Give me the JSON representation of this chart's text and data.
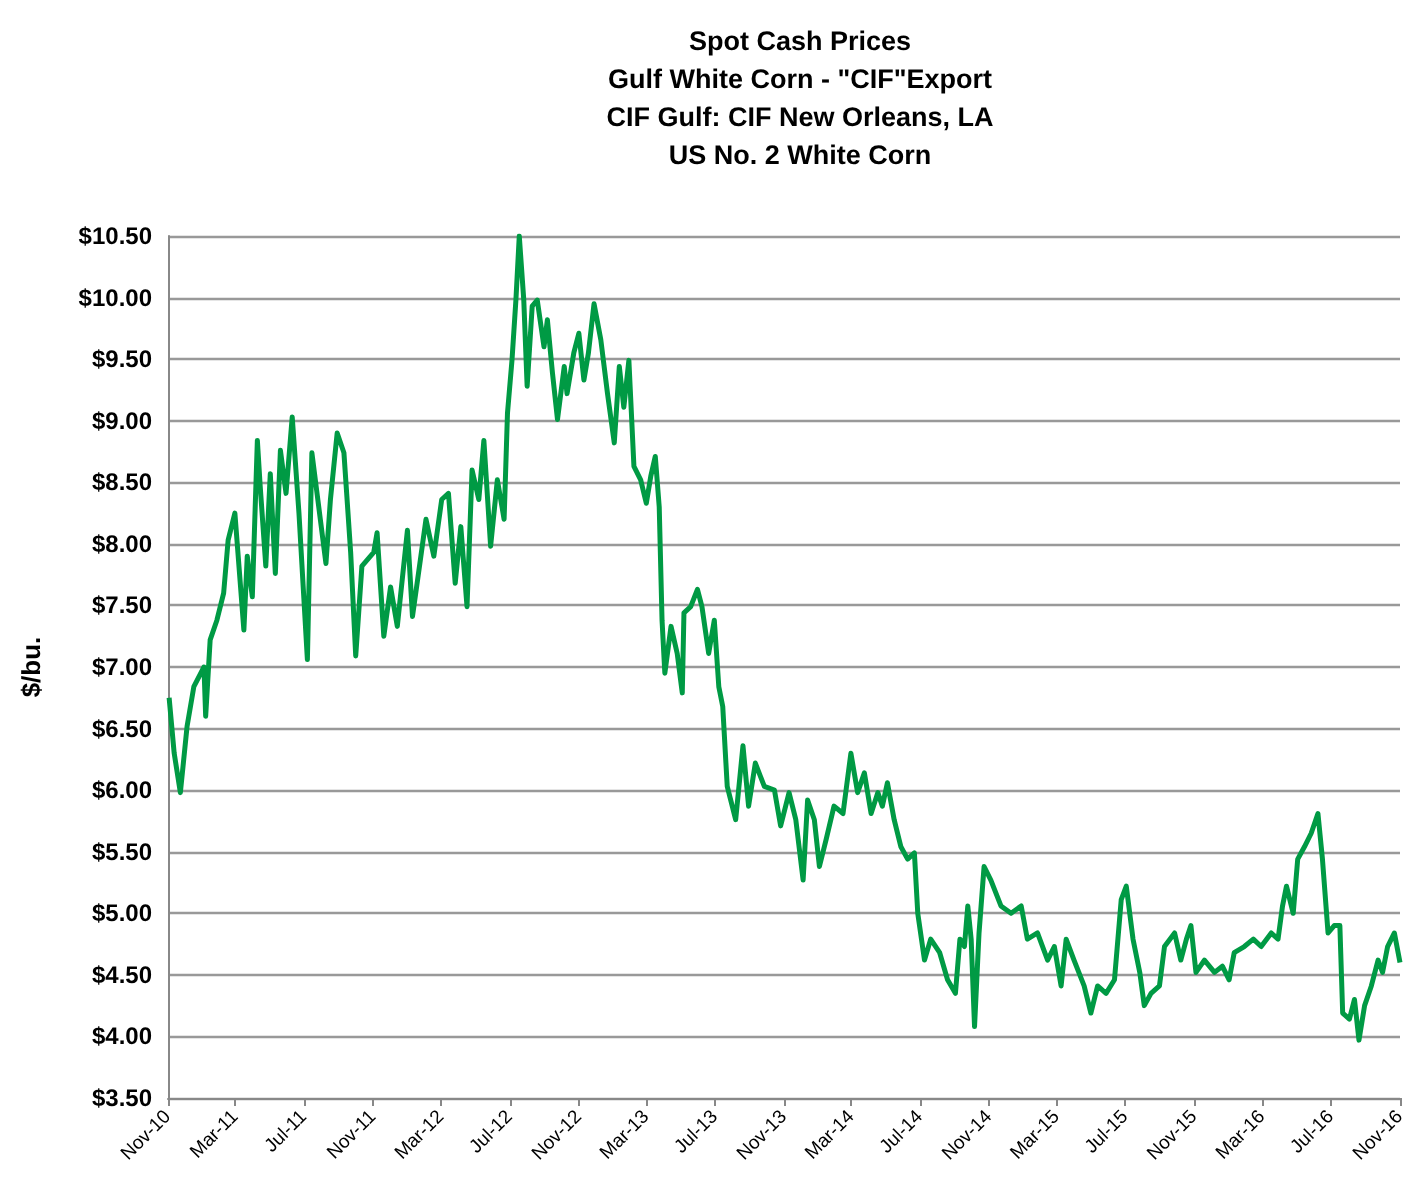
{
  "chart_data": {
    "type": "line",
    "title": "Spot Cash Prices",
    "subtitle": "Gulf White Corn - \"CIF\"Export\nCIF Gulf: CIF New Orleans, LA\nUS No. 2 White Corn",
    "ylabel": "$/bu.",
    "x": [
      "2010-11-03",
      "2010-11-12",
      "2010-11-23",
      "2010-12-05",
      "2010-12-17",
      "2011-01-04",
      "2011-01-07",
      "2011-01-15",
      "2011-01-27",
      "2011-02-08",
      "2011-02-16",
      "2011-02-28",
      "2011-03-16",
      "2011-03-22",
      "2011-03-31",
      "2011-04-09",
      "2011-04-14",
      "2011-04-24",
      "2011-05-02",
      "2011-05-11",
      "2011-05-20",
      "2011-05-30",
      "2011-06-10",
      "2011-06-22",
      "2011-07-07",
      "2011-07-15",
      "2011-07-30",
      "2011-08-09",
      "2011-08-17",
      "2011-08-29",
      "2011-09-10",
      "2011-09-22",
      "2011-10-01",
      "2011-10-12",
      "2011-11-02",
      "2011-11-08",
      "2011-11-20",
      "2011-12-02",
      "2011-12-14",
      "2012-01-01",
      "2012-01-10",
      "2012-01-24",
      "2012-02-03",
      "2012-02-17",
      "2012-03-02",
      "2012-03-14",
      "2012-03-26",
      "2012-04-05",
      "2012-04-16",
      "2012-04-25",
      "2012-05-07",
      "2012-05-16",
      "2012-05-28",
      "2012-06-09",
      "2012-06-21",
      "2012-06-27",
      "2012-07-05",
      "2012-07-12",
      "2012-07-18",
      "2012-07-26",
      "2012-08-01",
      "2012-08-10",
      "2012-08-19",
      "2012-08-31",
      "2012-09-06",
      "2012-09-15",
      "2012-09-24",
      "2012-10-06",
      "2012-10-11",
      "2012-10-23",
      "2012-11-01",
      "2012-11-10",
      "2012-11-18",
      "2012-11-28",
      "2012-12-10",
      "2012-12-22",
      "2013-01-03",
      "2013-01-12",
      "2013-01-20",
      "2013-01-29",
      "2013-02-07",
      "2013-02-19",
      "2013-03-01",
      "2013-03-09",
      "2013-03-17",
      "2013-03-24",
      "2013-03-29",
      "2013-04-03",
      "2013-04-14",
      "2013-04-25",
      "2013-05-04",
      "2013-05-07",
      "2013-05-19",
      "2013-05-31",
      "2013-06-08",
      "2013-06-20",
      "2013-06-30",
      "2013-07-08",
      "2013-07-15",
      "2013-07-23",
      "2013-08-07",
      "2013-08-20",
      "2013-08-30",
      "2013-09-11",
      "2013-09-27",
      "2013-10-15",
      "2013-10-26",
      "2013-11-10",
      "2013-11-22",
      "2013-12-05",
      "2013-12-13",
      "2013-12-25",
      "2014-01-03",
      "2014-01-15",
      "2014-01-29",
      "2014-02-14",
      "2014-02-28",
      "2014-03-12",
      "2014-03-24",
      "2014-04-05",
      "2014-04-17",
      "2014-04-25",
      "2014-05-04",
      "2014-05-16",
      "2014-05-28",
      "2014-06-09",
      "2014-06-21",
      "2014-06-27",
      "2014-07-09",
      "2014-07-20",
      "2014-08-05",
      "2014-08-19",
      "2014-09-02",
      "2014-09-10",
      "2014-09-18",
      "2014-09-24",
      "2014-09-30",
      "2014-10-06",
      "2014-10-14",
      "2014-10-23",
      "2014-11-04",
      "2014-11-22",
      "2014-12-10",
      "2014-12-28",
      "2015-01-08",
      "2015-01-26",
      "2015-02-13",
      "2015-02-25",
      "2015-03-09",
      "2015-03-18",
      "2015-04-01",
      "2015-04-19",
      "2015-05-01",
      "2015-05-13",
      "2015-05-28",
      "2015-06-12",
      "2015-06-24",
      "2015-07-03",
      "2015-07-15",
      "2015-07-27",
      "2015-08-04",
      "2015-08-16",
      "2015-08-31",
      "2015-09-09",
      "2015-09-27",
      "2015-10-08",
      "2015-10-18",
      "2015-10-26",
      "2015-11-04",
      "2015-11-19",
      "2015-12-07",
      "2015-12-21",
      "2016-01-02",
      "2016-01-11",
      "2016-01-29",
      "2016-02-14",
      "2016-02-28",
      "2016-03-17",
      "2016-03-29",
      "2016-04-06",
      "2016-04-13",
      "2016-04-25",
      "2016-05-03",
      "2016-05-15",
      "2016-05-27",
      "2016-06-08",
      "2016-06-16",
      "2016-06-26",
      "2016-07-07",
      "2016-07-17",
      "2016-07-22",
      "2016-08-03",
      "2016-08-12",
      "2016-08-20",
      "2016-08-30",
      "2016-09-11",
      "2016-09-23",
      "2016-10-01",
      "2016-10-10",
      "2016-10-22",
      "2016-11-01"
    ],
    "series": [
      {
        "color": "#009a44",
        "values": [
          6.75,
          6.3,
          5.98,
          6.52,
          6.84,
          7.0,
          6.6,
          7.22,
          7.38,
          7.6,
          8.03,
          8.25,
          7.3,
          7.9,
          7.57,
          8.84,
          8.47,
          7.82,
          8.57,
          7.76,
          8.76,
          8.41,
          9.03,
          8.25,
          7.06,
          8.74,
          8.2,
          7.84,
          8.36,
          8.9,
          8.74,
          7.93,
          7.09,
          7.82,
          7.93,
          8.09,
          7.25,
          7.65,
          7.33,
          8.11,
          7.41,
          7.87,
          8.2,
          7.9,
          8.36,
          8.41,
          7.68,
          8.14,
          7.49,
          8.6,
          8.36,
          8.84,
          7.98,
          8.52,
          8.2,
          9.06,
          9.49,
          9.98,
          10.5,
          9.98,
          9.28,
          9.93,
          9.98,
          9.6,
          9.82,
          9.39,
          9.01,
          9.44,
          9.22,
          9.55,
          9.71,
          9.33,
          9.55,
          9.95,
          9.66,
          9.22,
          8.82,
          9.44,
          9.11,
          9.49,
          8.63,
          8.52,
          8.33,
          8.55,
          8.71,
          8.3,
          7.38,
          6.95,
          7.33,
          7.11,
          6.79,
          7.44,
          7.49,
          7.63,
          7.49,
          7.11,
          7.38,
          6.84,
          6.68,
          6.03,
          5.76,
          6.36,
          5.87,
          6.22,
          6.03,
          6.0,
          5.71,
          5.98,
          5.76,
          5.27,
          5.92,
          5.76,
          5.38,
          5.6,
          5.87,
          5.81,
          6.3,
          5.98,
          6.14,
          5.81,
          5.98,
          5.87,
          6.06,
          5.76,
          5.54,
          5.44,
          5.49,
          5.0,
          4.62,
          4.79,
          4.68,
          4.46,
          4.35,
          4.79,
          4.73,
          5.06,
          4.79,
          4.08,
          4.84,
          5.38,
          5.27,
          5.06,
          5.0,
          5.06,
          4.79,
          4.84,
          4.62,
          4.73,
          4.41,
          4.79,
          4.62,
          4.41,
          4.19,
          4.41,
          4.35,
          4.46,
          5.11,
          5.22,
          4.79,
          4.52,
          4.25,
          4.35,
          4.41,
          4.73,
          4.84,
          4.62,
          4.79,
          4.9,
          4.52,
          4.62,
          4.52,
          4.57,
          4.46,
          4.68,
          4.73,
          4.79,
          4.73,
          4.84,
          4.79,
          5.06,
          5.22,
          5.0,
          5.44,
          5.54,
          5.65,
          5.81,
          5.44,
          4.84,
          4.9,
          4.9,
          4.19,
          4.14,
          4.3,
          3.97,
          4.25,
          4.41,
          4.62,
          4.52,
          4.73,
          4.84,
          4.6
        ]
      }
    ],
    "xlim": [
      "2010-11-01",
      "2016-11-01"
    ],
    "xticks": [
      {
        "value": "2010-11-01",
        "label": "Nov-10"
      },
      {
        "value": "2011-03-01",
        "label": "Mar-11"
      },
      {
        "value": "2011-07-01",
        "label": "Jul-11"
      },
      {
        "value": "2011-11-01",
        "label": "Nov-11"
      },
      {
        "value": "2012-03-01",
        "label": "Mar-12"
      },
      {
        "value": "2012-07-01",
        "label": "Jul-12"
      },
      {
        "value": "2012-11-01",
        "label": "Nov-12"
      },
      {
        "value": "2013-03-01",
        "label": "Mar-13"
      },
      {
        "value": "2013-07-01",
        "label": "Jul-13"
      },
      {
        "value": "2013-11-01",
        "label": "Nov-13"
      },
      {
        "value": "2014-03-01",
        "label": "Mar-14"
      },
      {
        "value": "2014-07-01",
        "label": "Jul-14"
      },
      {
        "value": "2014-11-01",
        "label": "Nov-14"
      },
      {
        "value": "2015-03-01",
        "label": "Mar-15"
      },
      {
        "value": "2015-07-01",
        "label": "Jul-15"
      },
      {
        "value": "2015-11-01",
        "label": "Nov-15"
      },
      {
        "value": "2016-03-01",
        "label": "Mar-16"
      },
      {
        "value": "2016-07-01",
        "label": "Jul-16"
      },
      {
        "value": "2016-11-01",
        "label": "Nov-16"
      }
    ],
    "ylim": [
      3.5,
      10.5
    ],
    "yticks": [
      {
        "value": 3.5,
        "label": "$3.50"
      },
      {
        "value": 4,
        "label": "$4.00"
      },
      {
        "value": 4.5,
        "label": "$4.50"
      },
      {
        "value": 5,
        "label": "$5.00"
      },
      {
        "value": 5.5,
        "label": "$5.50"
      },
      {
        "value": 6,
        "label": "$6.00"
      },
      {
        "value": 6.5,
        "label": "$6.50"
      },
      {
        "value": 7,
        "label": "$7.00"
      },
      {
        "value": 7.5,
        "label": "$7.50"
      },
      {
        "value": 8,
        "label": "$8.00"
      },
      {
        "value": 8.5,
        "label": "$8.50"
      },
      {
        "value": 9,
        "label": "$9.00"
      },
      {
        "value": 9.5,
        "label": "$9.50"
      },
      {
        "value": 10,
        "label": "$10.00"
      },
      {
        "value": 10.5,
        "label": "$10.50"
      }
    ],
    "grid": "y",
    "marker": "none",
    "line_style": "solid"
  }
}
